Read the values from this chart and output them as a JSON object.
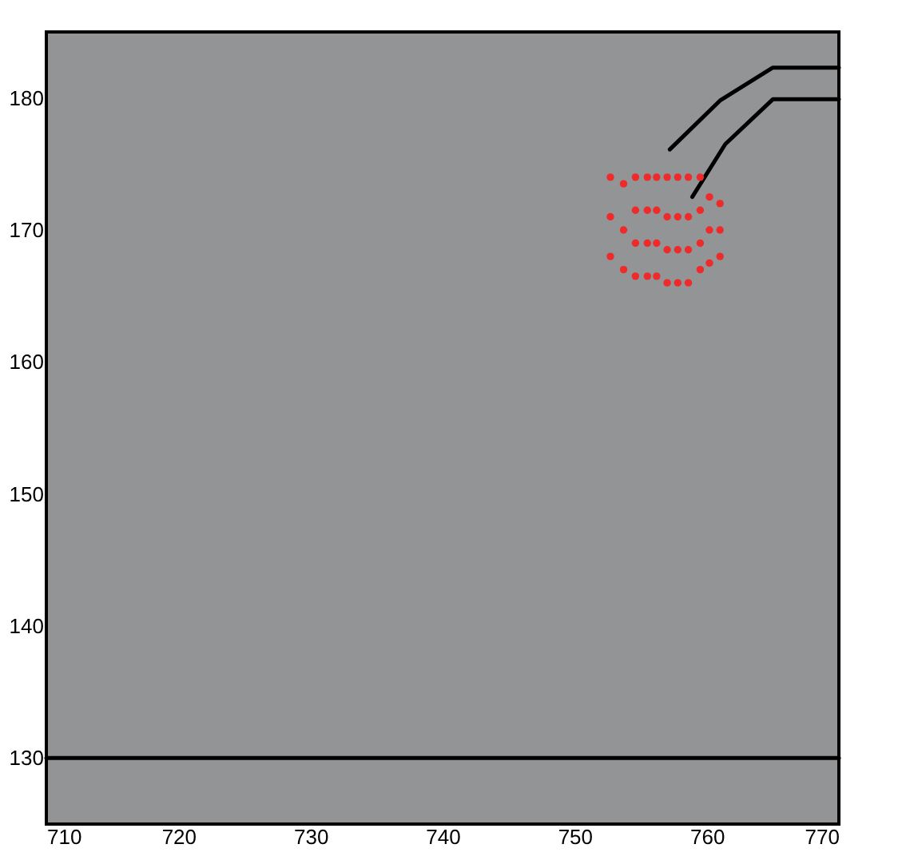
{
  "chart_data": {
    "type": "line",
    "xlim": [
      710,
      770
    ],
    "ylim": [
      125,
      185
    ],
    "xticks": [
      710,
      720,
      730,
      740,
      750,
      760,
      770
    ],
    "yticks": [
      130,
      140,
      150,
      160,
      170,
      180
    ],
    "grid": false,
    "marker": "none",
    "line_style": "solid",
    "series": [
      {
        "color": "#000000",
        "x": [
          710,
          770
        ],
        "values": [
          130,
          130
        ]
      },
      {
        "color": "#000000",
        "x": [
          757.2,
          761.0,
          765.0,
          770
        ],
        "values": [
          176.1,
          179.8,
          182.3,
          182.3
        ]
      },
      {
        "color": "#000000",
        "x": [
          758.9,
          761.4,
          765.0,
          770
        ],
        "values": [
          172.5,
          176.5,
          179.9,
          179.9
        ]
      },
      {
        "type": "scatter",
        "marker": "circle",
        "color": "#ee2a2a",
        "x": [
          752.7,
          752.7,
          752.7,
          753.7,
          753.7,
          753.7,
          754.6,
          754.6,
          754.6,
          754.6,
          755.5,
          755.5,
          755.5,
          755.5,
          756.2,
          756.2,
          756.2,
          756.2,
          757.0,
          757.0,
          757.0,
          757.0,
          757.8,
          757.8,
          757.8,
          757.8,
          758.6,
          758.6,
          758.6,
          758.6,
          759.5,
          759.5,
          759.5,
          759.5,
          760.2,
          760.2,
          760.2,
          761.0,
          761.0,
          761.0
        ],
        "values": [
          168,
          171,
          174,
          167,
          170,
          173.5,
          166.5,
          169,
          171.5,
          174,
          166.5,
          169,
          171.5,
          174,
          166.5,
          169,
          171.5,
          174,
          166,
          168.5,
          171,
          174,
          166,
          168.5,
          171,
          174,
          166,
          168.5,
          171,
          174,
          167,
          169,
          171.5,
          174,
          167.5,
          170,
          172.5,
          168,
          170,
          172
        ]
      }
    ]
  }
}
